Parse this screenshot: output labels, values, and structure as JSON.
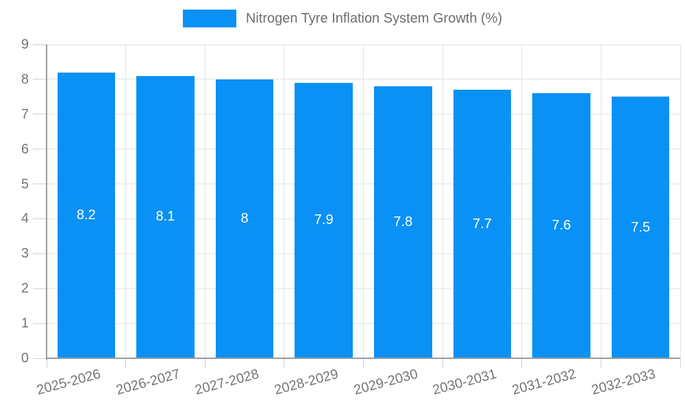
{
  "chart_data": {
    "type": "bar",
    "title": "",
    "legend": {
      "label": "Nitrogen Tyre Inflation System Growth (%)",
      "position": "top-center"
    },
    "categories": [
      "2025-2026",
      "2026-2027",
      "2027-2028",
      "2028-2029",
      "2029-2030",
      "2030-2031",
      "2031-2032",
      "2032-2033"
    ],
    "series": [
      {
        "name": "Nitrogen Tyre Inflation System Growth (%)",
        "values": [
          8.2,
          8.1,
          8,
          7.9,
          7.8,
          7.7,
          7.6,
          7.5
        ],
        "value_labels": [
          "8.2",
          "8.1",
          "8",
          "7.9",
          "7.8",
          "7.7",
          "7.6",
          "7.5"
        ],
        "color": "#0a91f5"
      }
    ],
    "xlabel": "",
    "ylabel": "",
    "ylim": [
      0,
      9
    ],
    "ytick_step": 1,
    "yticks": [
      0,
      1,
      2,
      3,
      4,
      5,
      6,
      7,
      8,
      9
    ],
    "grid": true,
    "x_label_rotation_deg": -15,
    "bar_label_color": "#ffffff",
    "colors": {
      "axis": "#9a9a9a",
      "gridline": "#e3e3e3",
      "tick": "#d0d0d0",
      "axis_text": "#757575",
      "legend_text": "#6e6e6e",
      "background": "#ffffff"
    }
  }
}
